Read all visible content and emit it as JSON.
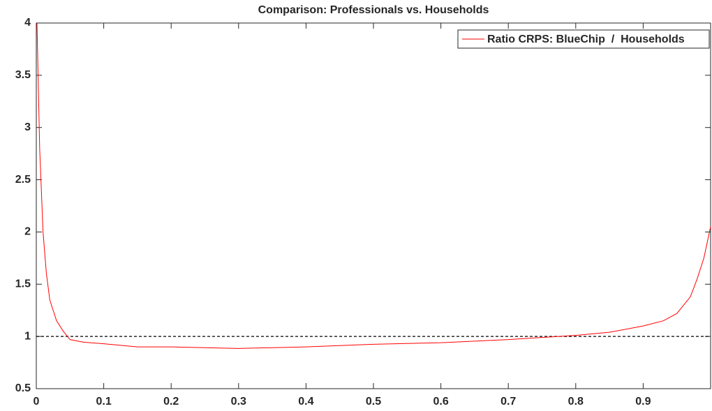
{
  "chart_data": {
    "type": "line",
    "title": "Comparison: Professionals vs. Households",
    "x": [
      0.001,
      0.005,
      0.01,
      0.015,
      0.02,
      0.03,
      0.04,
      0.05,
      0.07,
      0.1,
      0.15,
      0.2,
      0.3,
      0.4,
      0.5,
      0.6,
      0.7,
      0.8,
      0.85,
      0.9,
      0.93,
      0.95,
      0.97,
      0.98,
      0.99,
      1.0
    ],
    "series": [
      {
        "name": "Ratio CRPS: BlueChip  /  Households",
        "color": "#ff0000",
        "values": [
          4.0,
          2.8,
          2.0,
          1.6,
          1.35,
          1.15,
          1.05,
          0.97,
          0.945,
          0.93,
          0.9,
          0.9,
          0.885,
          0.9,
          0.925,
          0.94,
          0.97,
          1.01,
          1.04,
          1.1,
          1.15,
          1.22,
          1.38,
          1.55,
          1.75,
          2.05
        ]
      }
    ],
    "reference_line": {
      "value": 1,
      "color": "#000000",
      "dashed": true
    },
    "xlim": [
      0,
      1
    ],
    "ylim": [
      0.5,
      4
    ],
    "xticks": [
      0,
      0.1,
      0.2,
      0.3,
      0.4,
      0.5,
      0.6,
      0.7,
      0.8,
      0.9
    ],
    "yticks": [
      0.5,
      1,
      1.5,
      2,
      2.5,
      3,
      3.5,
      4
    ],
    "legend": "top-right"
  }
}
